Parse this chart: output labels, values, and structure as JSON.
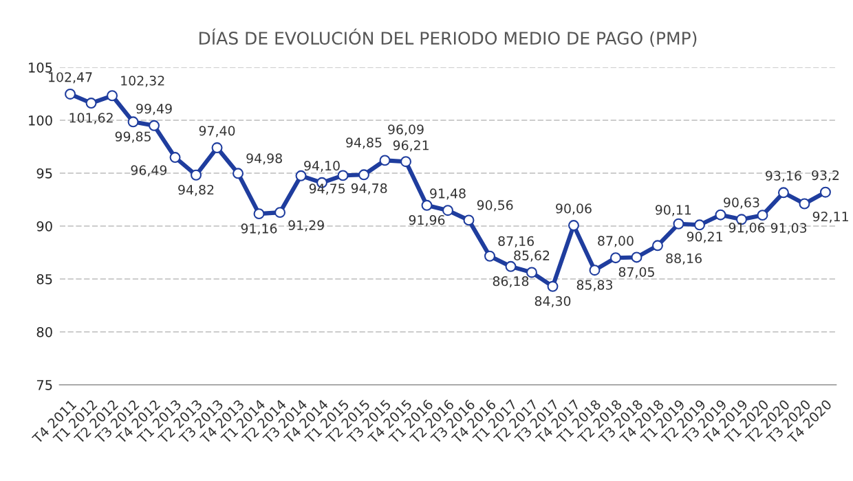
{
  "chart_data": {
    "type": "line",
    "title": "DÍAS DE EVOLUCIÓN DEL PERIODO MEDIO DE PAGO (PMP)",
    "categories": [
      "T4 2011",
      "T1 2012",
      "T2 2012",
      "T3 2012",
      "T4 2012",
      "T1 2013",
      "T2 2013",
      "T3 2013",
      "T4 2013",
      "T1 2014",
      "T2 2014",
      "T3 2014",
      "T4 2014",
      "T1 2015",
      "T2 2015",
      "T3 2015",
      "T4 2015",
      "T1 2016",
      "T2 2016",
      "T3 2016",
      "T4 2016",
      "T1 2017",
      "T2 2017",
      "T3 2017",
      "T4 2017",
      "T1 2018",
      "T2 2018",
      "T3 2018",
      "T4 2018",
      "T1 2019",
      "T2 2019",
      "T3 2019",
      "T4 2019",
      "T1 2020",
      "T2 2020",
      "T3 2020",
      "T4 2020"
    ],
    "series": [
      {
        "color": "#1f3d9e",
        "values": [
          102.47,
          101.62,
          102.32,
          99.85,
          99.49,
          96.49,
          94.82,
          97.4,
          94.98,
          91.16,
          91.29,
          94.75,
          94.1,
          94.78,
          94.85,
          96.21,
          96.09,
          91.96,
          91.48,
          90.56,
          87.16,
          86.18,
          85.62,
          84.3,
          90.06,
          85.83,
          87.0,
          87.05,
          88.16,
          90.21,
          90.11,
          91.06,
          90.63,
          91.03,
          93.16,
          92.11,
          93.2
        ],
        "value_labels": [
          "102,47",
          "101,62",
          "102,32",
          "99,85",
          "99,49",
          "96,49",
          "94,82",
          "97,40",
          "94,98",
          "91,16",
          "91,29",
          "94,75",
          "94,10",
          "94,78",
          "94,85",
          "96,21",
          "96,09",
          "91,96",
          "91,48",
          "90,56",
          "87,16",
          "86,18",
          "85,62",
          "84,30",
          "90,06",
          "85,83",
          "87,00",
          "87,05",
          "88,16",
          "90,21",
          "90,11",
          "91,06",
          "90,63",
          "91,03",
          "93,16",
          "92,11",
          "93,2"
        ]
      }
    ],
    "ylim": [
      75,
      105
    ],
    "yticks": [
      75,
      80,
      85,
      90,
      95,
      100,
      105
    ],
    "grid": "y",
    "marker": "circle",
    "line_style": "solid",
    "legend": false
  }
}
